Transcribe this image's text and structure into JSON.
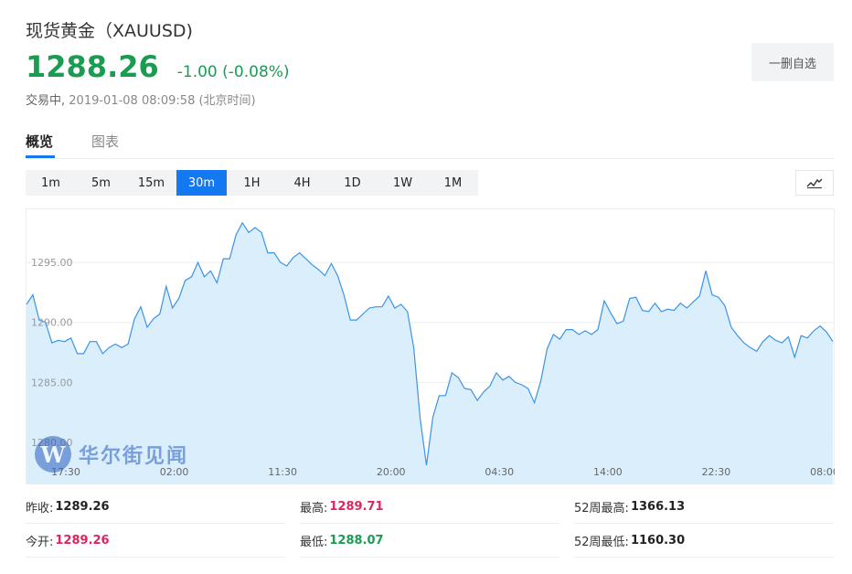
{
  "header": {
    "title": "现货黄金（XAUUSD)",
    "price": "1288.26",
    "change": "-1.00 (-0.08%)",
    "status_label": "交易中,",
    "timestamp": "2019-01-08 08:09:58 (北京时间)",
    "remove_button_label": "一删自选",
    "price_color": "#1a9c52"
  },
  "tabs": [
    {
      "label": "概览",
      "active": true
    },
    {
      "label": "图表",
      "active": false
    }
  ],
  "periods": [
    {
      "label": "1m",
      "active": false
    },
    {
      "label": "5m",
      "active": false
    },
    {
      "label": "15m",
      "active": false
    },
    {
      "label": "30m",
      "active": true
    },
    {
      "label": "1H",
      "active": false
    },
    {
      "label": "4H",
      "active": false
    },
    {
      "label": "1D",
      "active": false
    },
    {
      "label": "1W",
      "active": false
    },
    {
      "label": "1M",
      "active": false
    }
  ],
  "chart_type_icon": "line-chart-icon",
  "watermark": {
    "logo_letter": "W",
    "text": "华尔街见闻"
  },
  "chart_data": {
    "type": "area",
    "y_ticks": [
      "1295.00",
      "1290.00",
      "1285.00",
      "1280.00"
    ],
    "y_tick_values": [
      1295,
      1290,
      1285,
      1280
    ],
    "x_ticks": [
      "17:30",
      "02:00",
      "11:30",
      "20:00",
      "04:30",
      "14:00",
      "22:30",
      "08:00"
    ],
    "ylim": [
      1276.5,
      1299.5
    ],
    "grid": true,
    "line_color": "#3b94e6",
    "fill_color": "#dbeefc",
    "values": [
      1291.5,
      1292.3,
      1290.2,
      1290.0,
      1288.3,
      1288.5,
      1288.4,
      1288.7,
      1287.4,
      1287.4,
      1288.4,
      1288.4,
      1287.4,
      1287.9,
      1288.2,
      1287.9,
      1288.2,
      1290.3,
      1291.3,
      1289.6,
      1290.3,
      1290.7,
      1293.0,
      1291.2,
      1292.0,
      1293.5,
      1293.8,
      1295.0,
      1293.8,
      1294.3,
      1293.3,
      1295.3,
      1295.3,
      1297.3,
      1298.3,
      1297.5,
      1297.9,
      1297.5,
      1295.8,
      1295.8,
      1295.0,
      1294.7,
      1295.4,
      1295.8,
      1295.3,
      1294.8,
      1294.4,
      1293.9,
      1294.9,
      1293.9,
      1292.3,
      1290.2,
      1290.2,
      1290.7,
      1291.2,
      1291.3,
      1291.3,
      1292.2,
      1291.2,
      1291.5,
      1290.9,
      1287.9,
      1282.0,
      1278.1,
      1282.1,
      1283.9,
      1283.9,
      1285.8,
      1285.4,
      1284.5,
      1284.4,
      1283.5,
      1284.2,
      1284.7,
      1285.8,
      1285.2,
      1285.5,
      1285.0,
      1284.8,
      1284.5,
      1283.3,
      1285.1,
      1287.8,
      1289.0,
      1288.6,
      1289.4,
      1289.4,
      1289.0,
      1289.3,
      1289.0,
      1289.4,
      1291.8,
      1290.8,
      1289.9,
      1290.1,
      1292.0,
      1292.1,
      1291.0,
      1290.9,
      1291.6,
      1290.9,
      1291.1,
      1291.0,
      1291.6,
      1291.2,
      1291.7,
      1292.2,
      1294.3,
      1292.3,
      1292.1,
      1291.4,
      1289.6,
      1288.9,
      1288.3,
      1287.9,
      1287.6,
      1288.4,
      1288.9,
      1288.5,
      1288.3,
      1288.8,
      1287.1,
      1288.9,
      1288.7,
      1289.3,
      1289.7,
      1289.2,
      1288.4
    ]
  },
  "stats": [
    [
      {
        "label": "昨收:",
        "value": "1289.26",
        "color": "black"
      },
      {
        "label": "最高:",
        "value": "1289.71",
        "color": "red"
      },
      {
        "label": "52周最高:",
        "value": "1366.13",
        "color": "black"
      }
    ],
    [
      {
        "label": "今开:",
        "value": "1289.26",
        "color": "red"
      },
      {
        "label": "最低:",
        "value": "1288.07",
        "color": "green"
      },
      {
        "label": "52周最低:",
        "value": "1160.30",
        "color": "black"
      }
    ]
  ]
}
